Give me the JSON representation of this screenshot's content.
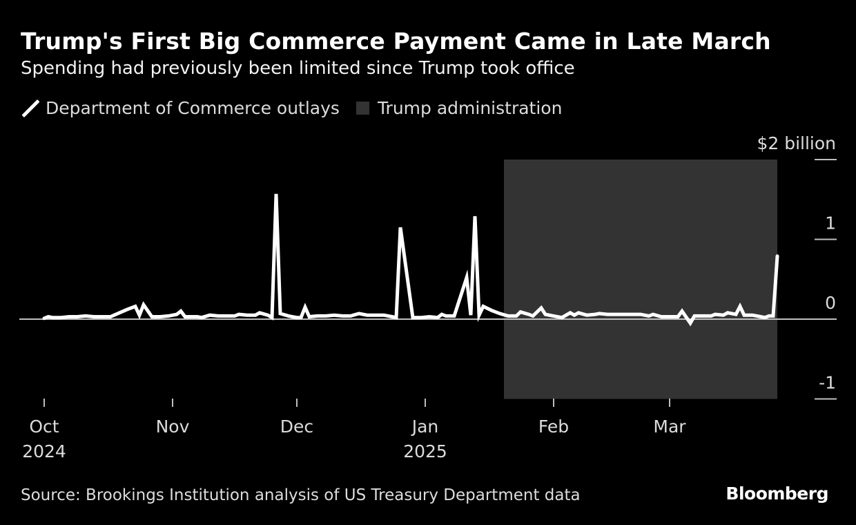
{
  "title": "Trump's First Big Commerce Payment Came in Late March",
  "subtitle": "Spending had previously been limited since Trump took office",
  "legend": {
    "series_label": "Department of Commerce outlays",
    "shade_label": "Trump administration"
  },
  "source": "Source: Brookings Institution analysis of US Treasury Department data",
  "brand": "Bloomberg",
  "colors": {
    "background": "#000000",
    "line": "#ffffff",
    "shade": "#333333",
    "axis": "#bfbfbf",
    "text": "#dcdcdc"
  },
  "chart_data": {
    "type": "line",
    "title": "Trump's First Big Commerce Payment Came in Late March",
    "ylabel": "$ billion",
    "unit_label": "$2 billion",
    "ylim": [
      -1,
      2
    ],
    "yticks": [
      {
        "value": 2,
        "label": "$2 billion"
      },
      {
        "value": 1,
        "label": "1"
      },
      {
        "value": 0,
        "label": "0"
      },
      {
        "value": -1,
        "label": "-1"
      }
    ],
    "xticks": [
      {
        "day": 0,
        "label": "Oct",
        "year": "2024"
      },
      {
        "day": 31,
        "label": "Nov",
        "year": ""
      },
      {
        "day": 61,
        "label": "Dec",
        "year": ""
      },
      {
        "day": 92,
        "label": "Jan",
        "year": "2025"
      },
      {
        "day": 123,
        "label": "Feb",
        "year": ""
      },
      {
        "day": 151,
        "label": "Mar",
        "year": ""
      }
    ],
    "x_unit": "days since 2024-10-01",
    "xlim": [
      -6,
      186
    ],
    "shaded_range": {
      "label": "Trump administration",
      "start_day": 111,
      "end_day": 177
    },
    "series": [
      {
        "name": "Department of Commerce outlays",
        "points": [
          [
            0,
            0.01
          ],
          [
            1,
            0.03
          ],
          [
            2,
            0.02
          ],
          [
            4,
            0.02
          ],
          [
            6,
            0.03
          ],
          [
            8,
            0.03
          ],
          [
            10,
            0.04
          ],
          [
            12,
            0.03
          ],
          [
            14,
            0.03
          ],
          [
            16,
            0.03
          ],
          [
            20,
            0.12
          ],
          [
            22,
            0.16
          ],
          [
            23,
            0.05
          ],
          [
            24,
            0.18
          ],
          [
            26,
            0.03
          ],
          [
            28,
            0.03
          ],
          [
            30,
            0.04
          ],
          [
            32,
            0.06
          ],
          [
            33,
            0.1
          ],
          [
            34,
            0.03
          ],
          [
            37,
            0.03
          ],
          [
            38,
            0.02
          ],
          [
            40,
            0.05
          ],
          [
            42,
            0.04
          ],
          [
            44,
            0.04
          ],
          [
            46,
            0.04
          ],
          [
            47,
            0.06
          ],
          [
            49,
            0.05
          ],
          [
            51,
            0.05
          ],
          [
            52,
            0.08
          ],
          [
            54,
            0.05
          ],
          [
            55,
            0.02
          ],
          [
            56,
            1.57
          ],
          [
            57,
            0.07
          ],
          [
            59,
            0.04
          ],
          [
            61,
            0.02
          ],
          [
            62,
            0.02
          ],
          [
            63,
            0.15
          ],
          [
            64,
            0.03
          ],
          [
            66,
            0.04
          ],
          [
            68,
            0.04
          ],
          [
            70,
            0.05
          ],
          [
            72,
            0.04
          ],
          [
            74,
            0.04
          ],
          [
            76,
            0.07
          ],
          [
            78,
            0.05
          ],
          [
            80,
            0.05
          ],
          [
            82,
            0.05
          ],
          [
            84,
            0.03
          ],
          [
            85,
            0.02
          ],
          [
            86,
            1.15
          ],
          [
            89,
            0.02
          ],
          [
            91,
            0.02
          ],
          [
            93,
            0.03
          ],
          [
            95,
            0.02
          ],
          [
            96,
            0.06
          ],
          [
            97,
            0.04
          ],
          [
            99,
            0.04
          ],
          [
            102,
            0.52
          ],
          [
            103,
            0.05
          ],
          [
            104,
            1.29
          ],
          [
            105,
            0.05
          ],
          [
            106,
            0.16
          ],
          [
            108,
            0.11
          ],
          [
            110,
            0.07
          ],
          [
            112,
            0.04
          ],
          [
            114,
            0.04
          ],
          [
            115,
            0.09
          ],
          [
            117,
            0.06
          ],
          [
            118,
            0.04
          ],
          [
            120,
            0.14
          ],
          [
            121,
            0.06
          ],
          [
            123,
            0.04
          ],
          [
            125,
            0.02
          ],
          [
            127,
            0.08
          ],
          [
            128,
            0.05
          ],
          [
            129,
            0.08
          ],
          [
            131,
            0.05
          ],
          [
            133,
            0.06
          ],
          [
            134,
            0.07
          ],
          [
            136,
            0.06
          ],
          [
            138,
            0.06
          ],
          [
            140,
            0.06
          ],
          [
            142,
            0.06
          ],
          [
            144,
            0.06
          ],
          [
            146,
            0.04
          ],
          [
            147,
            0.06
          ],
          [
            149,
            0.03
          ],
          [
            151,
            0.03
          ],
          [
            153,
            0.03
          ],
          [
            154,
            0.1
          ],
          [
            156,
            -0.05
          ],
          [
            157,
            0.04
          ],
          [
            159,
            0.04
          ],
          [
            161,
            0.04
          ],
          [
            162,
            0.06
          ],
          [
            164,
            0.05
          ],
          [
            165,
            0.08
          ],
          [
            167,
            0.06
          ],
          [
            168,
            0.16
          ],
          [
            169,
            0.05
          ],
          [
            171,
            0.05
          ],
          [
            173,
            0.03
          ],
          [
            174,
            0.02
          ],
          [
            175,
            0.04
          ],
          [
            176,
            0.04
          ],
          [
            177,
            0.79
          ]
        ]
      }
    ]
  }
}
